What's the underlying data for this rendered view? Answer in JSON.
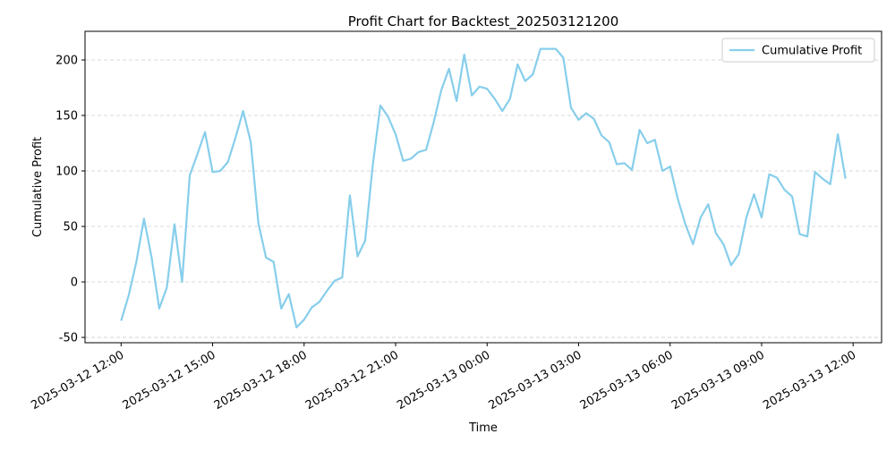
{
  "chart_data": {
    "type": "line",
    "title": "Profit Chart for Backtest_202503121200",
    "xlabel": "Time",
    "ylabel": "Cumulative Profit",
    "x": [
      "2025-03-12 12:00",
      "2025-03-12 12:15",
      "2025-03-12 12:30",
      "2025-03-12 12:45",
      "2025-03-12 13:00",
      "2025-03-12 13:15",
      "2025-03-12 13:30",
      "2025-03-12 13:45",
      "2025-03-12 14:00",
      "2025-03-12 14:15",
      "2025-03-12 14:30",
      "2025-03-12 14:45",
      "2025-03-12 15:00",
      "2025-03-12 15:15",
      "2025-03-12 15:30",
      "2025-03-12 15:45",
      "2025-03-12 16:00",
      "2025-03-12 16:15",
      "2025-03-12 16:30",
      "2025-03-12 16:45",
      "2025-03-12 17:00",
      "2025-03-12 17:15",
      "2025-03-12 17:30",
      "2025-03-12 17:45",
      "2025-03-12 18:00",
      "2025-03-12 18:15",
      "2025-03-12 18:30",
      "2025-03-12 18:45",
      "2025-03-12 19:00",
      "2025-03-12 19:15",
      "2025-03-12 19:30",
      "2025-03-12 19:45",
      "2025-03-12 20:00",
      "2025-03-12 20:15",
      "2025-03-12 20:30",
      "2025-03-12 20:45",
      "2025-03-12 21:00",
      "2025-03-12 21:15",
      "2025-03-12 21:30",
      "2025-03-12 21:45",
      "2025-03-12 22:00",
      "2025-03-12 22:15",
      "2025-03-12 22:30",
      "2025-03-12 22:45",
      "2025-03-12 23:00",
      "2025-03-12 23:15",
      "2025-03-12 23:30",
      "2025-03-12 23:45",
      "2025-03-13 00:00",
      "2025-03-13 00:15",
      "2025-03-13 00:30",
      "2025-03-13 00:45",
      "2025-03-13 01:00",
      "2025-03-13 01:15",
      "2025-03-13 01:30",
      "2025-03-13 01:45",
      "2025-03-13 02:00",
      "2025-03-13 02:15",
      "2025-03-13 02:30",
      "2025-03-13 02:45",
      "2025-03-13 03:00",
      "2025-03-13 03:15",
      "2025-03-13 03:30",
      "2025-03-13 03:45",
      "2025-03-13 04:00",
      "2025-03-13 04:15",
      "2025-03-13 04:30",
      "2025-03-13 04:45",
      "2025-03-13 05:00",
      "2025-03-13 05:15",
      "2025-03-13 05:30",
      "2025-03-13 05:45",
      "2025-03-13 06:00",
      "2025-03-13 06:15",
      "2025-03-13 06:30",
      "2025-03-13 06:45",
      "2025-03-13 07:00",
      "2025-03-13 07:15",
      "2025-03-13 07:30",
      "2025-03-13 07:45",
      "2025-03-13 08:00",
      "2025-03-13 08:15",
      "2025-03-13 08:30",
      "2025-03-13 08:45",
      "2025-03-13 09:00",
      "2025-03-13 09:15",
      "2025-03-13 09:30",
      "2025-03-13 09:45",
      "2025-03-13 10:00",
      "2025-03-13 10:15",
      "2025-03-13 10:30",
      "2025-03-13 10:45",
      "2025-03-13 11:00",
      "2025-03-13 11:15",
      "2025-03-13 11:30",
      "2025-03-13 11:45"
    ],
    "series": [
      {
        "name": "Cumulative Profit",
        "color": "#87ceeb",
        "values": [
          -35,
          -12,
          18,
          57,
          22,
          -24,
          -5,
          52,
          0,
          96,
          115,
          135,
          99,
          100,
          108,
          130,
          154,
          126,
          53,
          22,
          18,
          -24,
          -11,
          -41,
          -34,
          -23,
          -18,
          -8,
          1,
          4,
          78,
          23,
          37,
          105,
          159,
          149,
          133,
          109,
          111,
          117,
          119,
          144,
          173,
          192,
          163,
          205,
          168,
          176,
          174,
          165,
          154,
          165,
          196,
          181,
          187,
          210,
          210,
          210,
          202,
          157,
          146,
          152,
          147,
          132,
          126,
          106,
          107,
          101,
          137,
          125,
          128,
          100,
          104,
          75,
          52,
          34,
          58,
          70,
          44,
          34,
          15,
          25,
          58,
          79,
          58,
          97,
          94,
          83,
          77,
          43,
          41,
          99,
          93,
          88,
          133,
          93
        ]
      }
    ],
    "xlim": [
      "2025-03-12 10:49",
      "2025-03-13 12:56"
    ],
    "xticks": [
      "2025-03-12 12:00",
      "2025-03-12 15:00",
      "2025-03-12 18:00",
      "2025-03-12 21:00",
      "2025-03-13 00:00",
      "2025-03-13 03:00",
      "2025-03-13 06:00",
      "2025-03-13 09:00",
      "2025-03-13 12:00"
    ],
    "ylim": [
      -54.8,
      225.8
    ],
    "yticks": [
      -50,
      0,
      50,
      100,
      150,
      200
    ],
    "grid": true,
    "legend": "upper right"
  }
}
